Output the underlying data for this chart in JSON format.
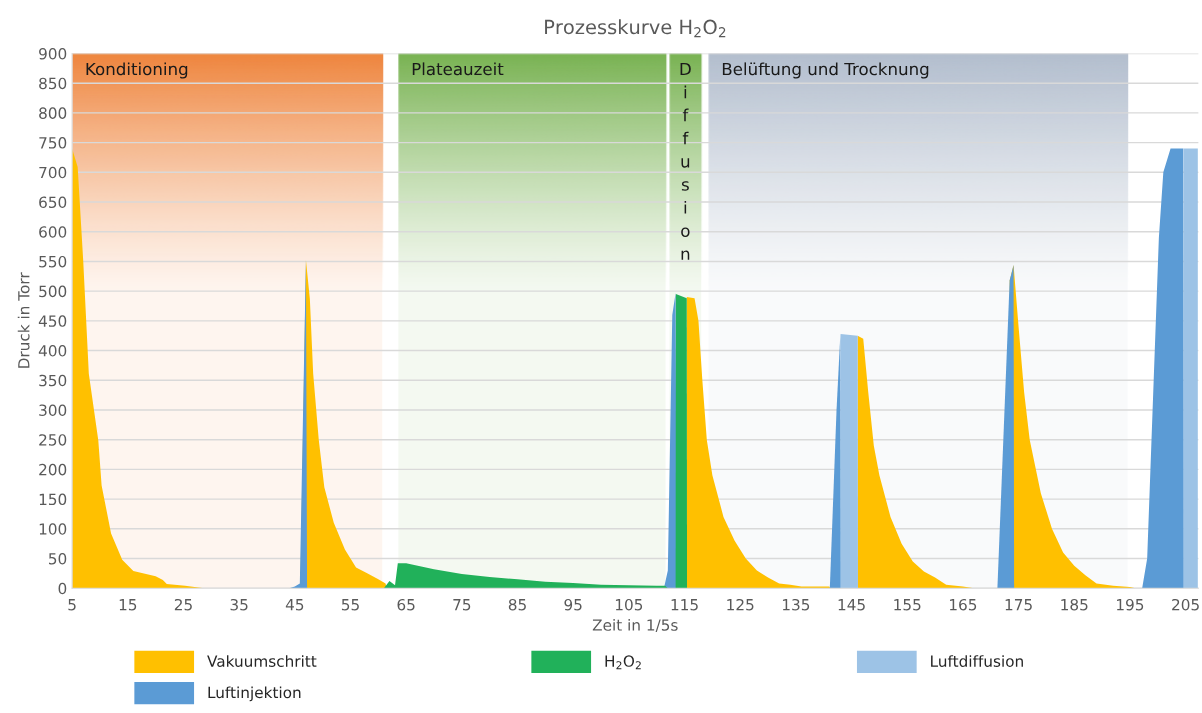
{
  "chart_data": {
    "type": "area",
    "title": "Prozesskurve H$_{2}$O$_{2}$",
    "xlabel": "Zeit in 1/5s",
    "ylabel": "Druck in Torr",
    "xlim": [
      5,
      207.3
    ],
    "xticks": [
      5,
      15,
      25,
      35,
      45,
      55,
      65,
      75,
      85,
      95,
      105,
      115,
      125,
      135,
      145,
      155,
      165,
      175,
      185,
      195,
      205
    ],
    "ylim": [
      0,
      900
    ],
    "yticks": [
      0,
      50,
      100,
      150,
      200,
      250,
      300,
      350,
      400,
      450,
      500,
      550,
      600,
      650,
      700,
      750,
      800,
      850,
      900
    ],
    "grid": "y",
    "legend": "bottom",
    "bands": [
      {
        "axis": "x",
        "from": 5,
        "to": 60.7,
        "label": "Konditioning",
        "color": "#ed7d31"
      },
      {
        "axis": "x",
        "from": 63.6,
        "to": 111.6,
        "label": "Plateauzeit",
        "color": "#70ad47"
      },
      {
        "axis": "x",
        "from": 112.3,
        "to": 118,
        "label": "Diffusion",
        "color": "#70ad47"
      },
      {
        "axis": "x",
        "from": 119.3,
        "to": 194.6,
        "label": "Belüftung und Trocknung",
        "color": "#adb9ca"
      }
    ],
    "series": [
      {
        "name": "Vakuumschritt",
        "color": "#ffc000",
        "x": [
          5,
          6,
          7,
          8,
          9.7,
          10.3,
          12,
          14,
          16,
          20,
          21.3,
          22,
          25.3,
          28,
          28.7,
          30,
          46,
          47,
          47.7,
          48.3,
          49.3,
          50.3,
          52,
          54,
          56,
          58,
          60,
          61.3,
          61.5,
          114,
          115.4,
          116.8,
          117.5,
          118.2,
          119,
          120,
          122,
          124,
          126,
          128,
          130,
          132,
          134,
          136,
          141,
          141.2,
          142,
          146.1,
          147.1,
          148,
          149,
          150,
          152,
          154,
          156,
          158,
          160,
          162,
          165,
          167,
          170,
          173.4,
          174.1,
          175,
          176,
          177,
          179,
          181,
          183,
          185,
          187,
          189,
          192,
          195,
          196
        ],
        "values": [
          740,
          709,
          550,
          361,
          249,
          173,
          92,
          48,
          29,
          20,
          14,
          7,
          4,
          1,
          0,
          null,
          0,
          552,
          487,
          361,
          250,
          170,
          110,
          65,
          35,
          25,
          15,
          8,
          0,
          null,
          490,
          488,
          450,
          350,
          250,
          190,
          120,
          80,
          50,
          30,
          18,
          8,
          6,
          3,
          3,
          0,
          null,
          425,
          420,
          330,
          240,
          190,
          120,
          75,
          45,
          28,
          18,
          6,
          3,
          0,
          null,
          518,
          544,
          440,
          330,
          250,
          160,
          100,
          60,
          38,
          22,
          8,
          4,
          2,
          0
        ]
      },
      {
        "name": "Luftinjektion",
        "color": "#5b9bd5",
        "x": [
          44,
          45,
          45.9,
          47,
          47.2,
          110,
          111.3,
          112,
          112.8,
          113.4,
          113.6,
          130,
          141.1,
          142.3,
          143,
          143.1,
          160,
          171.2,
          173.4,
          174.1,
          174.2,
          190,
          197.2,
          198.1,
          200.2,
          201,
          202.3,
          204.6,
          204.7
        ],
        "values": [
          0,
          3,
          8,
          552,
          0,
          null,
          0,
          30,
          460,
          497,
          0,
          null,
          0,
          299,
          429,
          0,
          null,
          0,
          518,
          544,
          0,
          null,
          0,
          50,
          590,
          700,
          740,
          740,
          0
        ]
      },
      {
        "name": "H$_{2}$O$_{2}$",
        "color": "#21b15a",
        "x": [
          60,
          61,
          62,
          63,
          63.5,
          65,
          70,
          75,
          80,
          85,
          90,
          95,
          100,
          105,
          110,
          111.5,
          112,
          113,
          113.4,
          113.45,
          115.4,
          115.45
        ],
        "values": [
          0,
          0,
          12,
          5,
          42,
          42,
          32,
          24,
          19,
          15,
          11,
          9,
          6,
          5,
          4,
          4,
          0,
          null,
          0,
          495,
          488,
          0
        ]
      },
      {
        "name": "Luftdiffusion",
        "color": "#9dc3e6",
        "x": [
          143,
          143.05,
          146.1,
          146.15,
          180,
          204.6,
          204.65,
          207.2
        ],
        "values": [
          0,
          428,
          425,
          0,
          null,
          0,
          740,
          740
        ]
      }
    ]
  }
}
